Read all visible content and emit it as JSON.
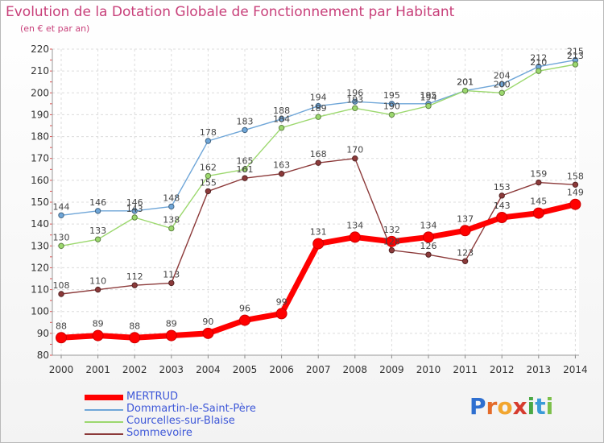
{
  "header": {
    "title": "Evolution de la Dotation Globale de Fonctionnement par Habitant",
    "subtitle": "(en € et par an)"
  },
  "chart_data": {
    "type": "line",
    "x": [
      2000,
      2001,
      2002,
      2003,
      2004,
      2005,
      2006,
      2007,
      2008,
      2009,
      2010,
      2011,
      2012,
      2013,
      2014
    ],
    "ylim": [
      80,
      220
    ],
    "yticks": [
      80,
      90,
      100,
      110,
      120,
      130,
      140,
      150,
      160,
      170,
      180,
      190,
      200,
      210,
      220
    ],
    "grid": true,
    "legend_position": "bottom-left",
    "series": [
      {
        "name": "MERTRUD",
        "color": "#ff0000",
        "values": [
          88,
          89,
          88,
          89,
          90,
          96,
          99,
          131,
          134,
          132,
          134,
          137,
          143,
          145,
          149
        ]
      },
      {
        "name": "Dommartin-le-Saint-Père",
        "color": "#6fa6d8",
        "values": [
          144,
          146,
          146,
          148,
          178,
          183,
          188,
          194,
          196,
          195,
          195,
          201,
          204,
          212,
          215
        ]
      },
      {
        "name": "Courcelles-sur-Blaise",
        "color": "#9cd86e",
        "values": [
          130,
          133,
          143,
          138,
          162,
          165,
          184,
          189,
          193,
          190,
          194,
          201,
          200,
          210,
          213
        ]
      },
      {
        "name": "Sommevoire",
        "color": "#8c3a3a",
        "values": [
          108,
          110,
          112,
          113,
          155,
          161,
          163,
          168,
          170,
          128,
          126,
          123,
          153,
          159,
          158
        ]
      }
    ]
  },
  "logo": {
    "letters": [
      "P",
      "r",
      "o",
      "x",
      "i",
      "t",
      "i"
    ],
    "colors": [
      "#2e6fd0",
      "#e46b2a",
      "#f2a62f",
      "#d63b2e",
      "#4aa845",
      "#3b9bd8",
      "#7cc04a"
    ]
  }
}
